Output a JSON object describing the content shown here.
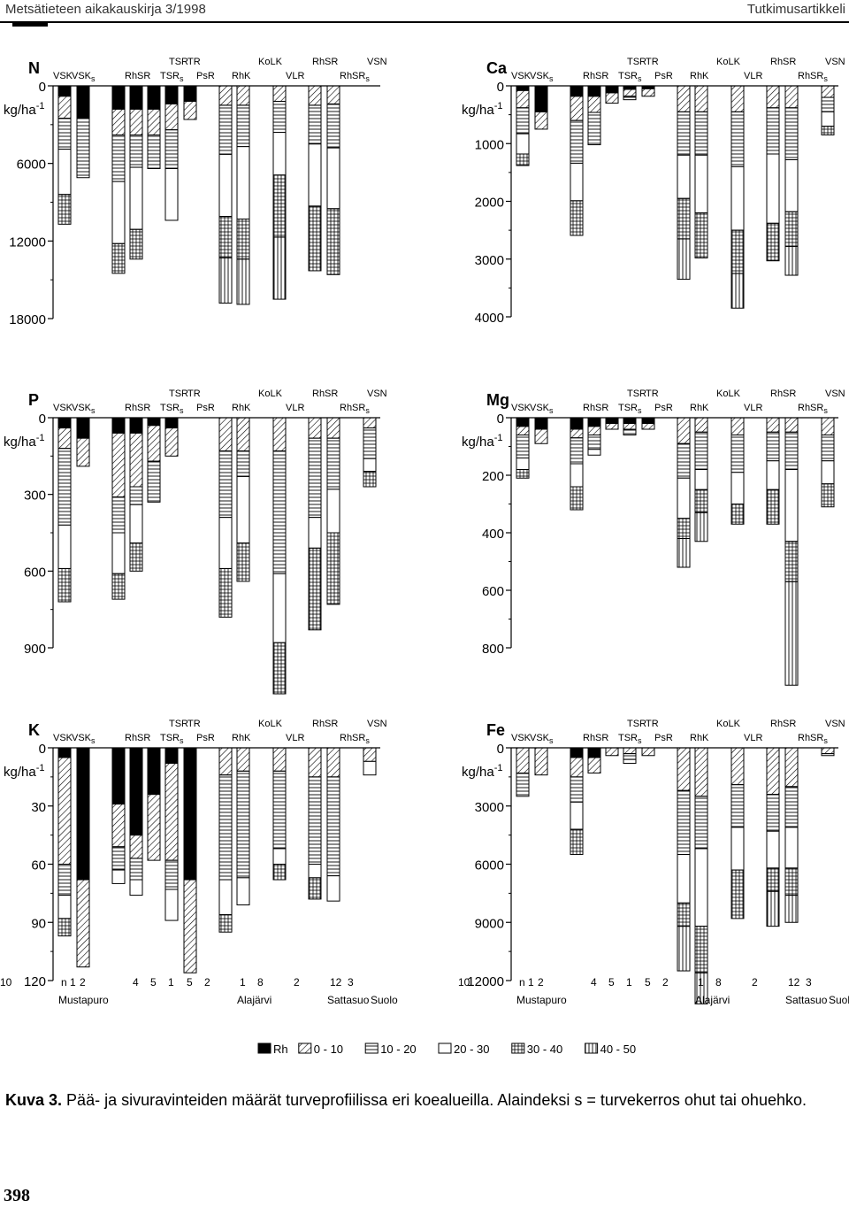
{
  "header": {
    "journal": "Metsätieteen aikakauskirja 3/1998",
    "section": "Tutkimusartikkeli"
  },
  "colors": {
    "ink": "#000000"
  },
  "sites_top": [
    {
      "label": "TSR",
      "col": 5
    },
    {
      "label": "TR",
      "col": 6
    },
    {
      "label": "KoLK",
      "col": 10
    },
    {
      "label": "RhSR",
      "col": 13
    },
    {
      "label": "VSN",
      "col": 16
    }
  ],
  "sites_bottom": [
    {
      "label": "VSK",
      "col": 0
    },
    {
      "label": "VSK",
      "sub": "s",
      "col": 1
    },
    {
      "label": "RhSR",
      "col": 3
    },
    {
      "label": "TSR",
      "sub": "s",
      "col": 5
    },
    {
      "label": "PsR",
      "col": 7
    },
    {
      "label": "RhK",
      "col": 9
    },
    {
      "label": "VLR",
      "col": 12
    },
    {
      "label": "RhSR",
      "sub": "s",
      "col": 15
    }
  ],
  "numbers": [
    {
      "label": "n 1",
      "col": 0
    },
    {
      "label": "2",
      "col": 1
    },
    {
      "label": "4",
      "col": 3
    },
    {
      "label": "5",
      "col": 4
    },
    {
      "label": "1",
      "col": 5
    },
    {
      "label": "5",
      "col": 6
    },
    {
      "label": "2",
      "col": 7
    },
    {
      "label": "1",
      "col": 9
    },
    {
      "label": "8",
      "col": 10
    },
    {
      "label": "2",
      "col": 12
    },
    {
      "label": "12",
      "col": 14
    },
    {
      "label": "3",
      "col": 15
    },
    {
      "label": "10",
      "col": 17
    }
  ],
  "areas": [
    {
      "label": "Mustapuro",
      "col": 0
    },
    {
      "label": "Alajärvi",
      "col": 9
    },
    {
      "label": "Sattasuo",
      "col": 14
    },
    {
      "label": "Suolo",
      "col": 16.5
    }
  ],
  "legend": [
    {
      "label": "Rh",
      "pattern": "black"
    },
    {
      "label": "0 - 10",
      "pattern": "hatch"
    },
    {
      "label": "10 - 20",
      "pattern": "hlines"
    },
    {
      "label": "20 - 30",
      "pattern": "empty"
    },
    {
      "label": "30 - 40",
      "pattern": "grid"
    },
    {
      "label": "40 - 50",
      "pattern": "vlines"
    }
  ],
  "chart_data": [
    {
      "type": "bar",
      "stacked": true,
      "element": "N",
      "unit": "kg/ha-1",
      "ylim": [
        0,
        18000
      ],
      "yticks": [
        0,
        6000,
        12000,
        18000
      ],
      "series_order": [
        "Rh",
        "0 - 10",
        "10 - 20",
        "20 - 30",
        "30 - 40",
        "40 - 50"
      ],
      "bars": [
        [
          800,
          1700,
          2400,
          3500,
          2300,
          0
        ],
        [
          2500,
          0,
          4600,
          0,
          0,
          0
        ],
        [
          1800,
          2000,
          3600,
          4800,
          2300,
          0
        ],
        [
          1800,
          2000,
          2500,
          4800,
          2300,
          0
        ],
        [
          1800,
          2000,
          2600,
          0,
          0,
          0
        ],
        [
          1400,
          2000,
          3000,
          4000,
          0,
          0
        ],
        [
          1200,
          1400,
          0,
          0,
          0,
          0
        ],
        [
          0,
          0,
          0,
          0,
          0,
          0
        ],
        [
          0,
          1500,
          3800,
          4800,
          3200,
          3500
        ],
        [
          0,
          1500,
          3200,
          5600,
          3100,
          3500
        ],
        [
          0,
          0,
          0,
          0,
          0,
          0
        ],
        [
          0,
          1200,
          2400,
          3300,
          4800,
          4800
        ],
        [
          0,
          0,
          0,
          0,
          0,
          0
        ],
        [
          0,
          1500,
          3000,
          4800,
          5000,
          0
        ],
        [
          0,
          1400,
          3400,
          4700,
          5100,
          0
        ],
        [
          0,
          0,
          0,
          0,
          0,
          0
        ],
        [
          0,
          0,
          0,
          0,
          0,
          0
        ]
      ]
    },
    {
      "type": "bar",
      "stacked": true,
      "element": "Ca",
      "unit": "kg/ha-1",
      "ylim": [
        0,
        4000
      ],
      "yticks": [
        0,
        1000,
        2000,
        3000,
        4000
      ],
      "series_order": [
        "Rh",
        "0 - 10",
        "10 - 20",
        "20 - 30",
        "30 - 40",
        "40 - 50"
      ],
      "bars": [
        [
          80,
          300,
          450,
          350,
          200,
          0
        ],
        [
          450,
          300,
          0,
          0,
          0,
          0
        ],
        [
          180,
          420,
          740,
          650,
          600,
          0
        ],
        [
          180,
          280,
          560,
          0,
          0,
          0
        ],
        [
          120,
          180,
          0,
          0,
          0,
          0
        ],
        [
          60,
          120,
          60,
          0,
          0,
          0
        ],
        [
          50,
          130,
          0,
          0,
          0,
          0
        ],
        [
          0,
          0,
          0,
          0,
          0,
          0
        ],
        [
          0,
          450,
          750,
          750,
          700,
          700
        ],
        [
          0,
          450,
          750,
          1000,
          780,
          0
        ],
        [
          0,
          0,
          0,
          0,
          0,
          0
        ],
        [
          0,
          450,
          950,
          1100,
          750,
          600
        ],
        [
          0,
          0,
          0,
          0,
          0,
          0
        ],
        [
          0,
          380,
          800,
          1200,
          650,
          0
        ],
        [
          0,
          380,
          900,
          900,
          600,
          500
        ],
        [
          0,
          0,
          0,
          0,
          0,
          0
        ],
        [
          0,
          200,
          250,
          250,
          150,
          0
        ]
      ]
    },
    {
      "type": "bar",
      "stacked": true,
      "element": "P",
      "unit": "kg/ha-1",
      "ylim": [
        0,
        900
      ],
      "yticks": [
        0,
        300,
        600,
        900
      ],
      "series_order": [
        "Rh",
        "0 - 10",
        "10 - 20",
        "20 - 30",
        "30 - 40",
        "40 - 50"
      ],
      "bars": [
        [
          40,
          80,
          300,
          170,
          130,
          0
        ],
        [
          80,
          110,
          0,
          0,
          0,
          0
        ],
        [
          60,
          250,
          140,
          160,
          100,
          0
        ],
        [
          60,
          210,
          70,
          150,
          110,
          0
        ],
        [
          30,
          140,
          160,
          0,
          0,
          0
        ],
        [
          40,
          110,
          0,
          0,
          0,
          0
        ],
        [
          0,
          0,
          0,
          0,
          0,
          0
        ],
        [
          0,
          0,
          0,
          0,
          0,
          0
        ],
        [
          0,
          130,
          260,
          200,
          190,
          0
        ],
        [
          0,
          130,
          100,
          260,
          150,
          0
        ],
        [
          0,
          0,
          0,
          0,
          0,
          0
        ],
        [
          0,
          130,
          480,
          270,
          200,
          0
        ],
        [
          0,
          0,
          0,
          0,
          0,
          0
        ],
        [
          0,
          80,
          310,
          120,
          320,
          0
        ],
        [
          0,
          80,
          200,
          170,
          280,
          0
        ],
        [
          0,
          0,
          0,
          0,
          0,
          0
        ],
        [
          0,
          40,
          120,
          50,
          60,
          0
        ]
      ]
    },
    {
      "type": "bar",
      "stacked": true,
      "element": "Mg",
      "unit": "kg/ha-1",
      "ylim": [
        0,
        800
      ],
      "yticks": [
        0,
        200,
        400,
        600,
        800
      ],
      "series_order": [
        "Rh",
        "0 - 10",
        "10 - 20",
        "20 - 30",
        "30 - 40",
        "40 - 50"
      ],
      "bars": [
        [
          30,
          30,
          80,
          40,
          30,
          0
        ],
        [
          40,
          50,
          0,
          0,
          0,
          0
        ],
        [
          40,
          30,
          90,
          80,
          80,
          0
        ],
        [
          30,
          30,
          50,
          20,
          0,
          0
        ],
        [
          20,
          20,
          0,
          0,
          0,
          0
        ],
        [
          20,
          20,
          20,
          0,
          0,
          0
        ],
        [
          20,
          20,
          0,
          0,
          0,
          0
        ],
        [
          0,
          0,
          0,
          0,
          0,
          0
        ],
        [
          0,
          90,
          120,
          140,
          70,
          100
        ],
        [
          0,
          50,
          130,
          70,
          80,
          100
        ],
        [
          0,
          0,
          0,
          0,
          0,
          0
        ],
        [
          0,
          60,
          130,
          110,
          70,
          0
        ],
        [
          0,
          0,
          0,
          0,
          0,
          0
        ],
        [
          0,
          50,
          100,
          100,
          120,
          0
        ],
        [
          0,
          50,
          130,
          250,
          140,
          360
        ],
        [
          0,
          0,
          0,
          0,
          0,
          0
        ],
        [
          0,
          60,
          90,
          80,
          80,
          0
        ]
      ]
    },
    {
      "type": "bar",
      "stacked": true,
      "element": "K",
      "unit": "kg/ha-1",
      "ylim": [
        0,
        120
      ],
      "yticks": [
        0,
        30,
        60,
        90,
        120
      ],
      "series_order": [
        "Rh",
        "0 - 10",
        "10 - 20",
        "20 - 30",
        "30 - 40",
        "40 - 50"
      ],
      "bars": [
        [
          5,
          55,
          16,
          12,
          9,
          0
        ],
        [
          68,
          45,
          0,
          0,
          0,
          0
        ],
        [
          29,
          22,
          12,
          7,
          0,
          0
        ],
        [
          45,
          12,
          11,
          8,
          0,
          0
        ],
        [
          24,
          34,
          0,
          0,
          0,
          0
        ],
        [
          8,
          50,
          15,
          16,
          0,
          0
        ],
        [
          68,
          48,
          0,
          0,
          0,
          0
        ],
        [
          0,
          0,
          0,
          0,
          0,
          0
        ],
        [
          0,
          14,
          54,
          18,
          9,
          0
        ],
        [
          0,
          12,
          55,
          14,
          0,
          0
        ],
        [
          0,
          0,
          0,
          0,
          0,
          0
        ],
        [
          0,
          12,
          40,
          8,
          8,
          0
        ],
        [
          0,
          0,
          0,
          0,
          0,
          0
        ],
        [
          0,
          15,
          45,
          7,
          11,
          0
        ],
        [
          0,
          15,
          51,
          13,
          0,
          0
        ],
        [
          0,
          0,
          0,
          0,
          0,
          0
        ],
        [
          0,
          7,
          0,
          7,
          0,
          0
        ]
      ]
    },
    {
      "type": "bar",
      "stacked": true,
      "element": "Fe",
      "unit": "kg/ha-1",
      "ylim": [
        0,
        12000
      ],
      "yticks": [
        0,
        3000,
        6000,
        9000,
        12000
      ],
      "series_order": [
        "Rh",
        "0 - 10",
        "10 - 20",
        "20 - 30",
        "30 - 40",
        "40 - 50"
      ],
      "bars": [
        [
          0,
          1300,
          1200,
          0,
          0,
          0
        ],
        [
          0,
          1400,
          0,
          0,
          0,
          0
        ],
        [
          500,
          1000,
          1300,
          1400,
          1300,
          0
        ],
        [
          500,
          800,
          0,
          0,
          0,
          0
        ],
        [
          0,
          400,
          0,
          0,
          0,
          0
        ],
        [
          0,
          300,
          300,
          200,
          0,
          0
        ],
        [
          0,
          400,
          0,
          0,
          0,
          0
        ],
        [
          0,
          0,
          0,
          0,
          0,
          0
        ],
        [
          0,
          2200,
          3300,
          2500,
          1200,
          2300
        ],
        [
          0,
          2500,
          2700,
          4000,
          2400,
          1600
        ],
        [
          0,
          0,
          0,
          0,
          0,
          0
        ],
        [
          0,
          1900,
          2200,
          2200,
          2500,
          0
        ],
        [
          0,
          0,
          0,
          0,
          0,
          0
        ],
        [
          0,
          2400,
          1900,
          1900,
          1200,
          1800
        ],
        [
          0,
          2000,
          2100,
          2100,
          1400,
          1400
        ],
        [
          0,
          0,
          0,
          0,
          0,
          0
        ],
        [
          0,
          300,
          100,
          0,
          0,
          0
        ]
      ]
    }
  ],
  "caption": {
    "label": "Kuva 3.",
    "text": "Pää- ja sivuravinteiden määrät turveprofiilissa eri koealueilla. Alaindeksi s = turvekerros ohut tai ohuehko."
  },
  "page_number": "398"
}
